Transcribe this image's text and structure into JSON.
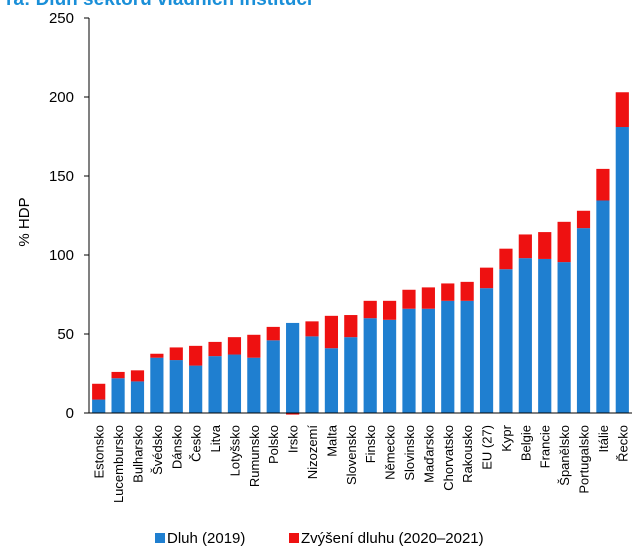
{
  "chart_data": {
    "type": "bar",
    "stacked": true,
    "title": "ra: Dluh sektoru vládních institucí",
    "ylabel": "% HDP",
    "ylim": [
      0,
      250
    ],
    "yticks": [
      0,
      50,
      100,
      150,
      200,
      250
    ],
    "grid": false,
    "legend_position": "bottom",
    "categories": [
      "Estonsko",
      "Lucembursko",
      "Bulharsko",
      "Švédsko",
      "Dánsko",
      "Česko",
      "Litva",
      "Lotyšsko",
      "Rumunsko",
      "Polsko",
      "Irsko",
      "Nizozemí",
      "Malta",
      "Slovensko",
      "Finsko",
      "Německo",
      "Slovinsko",
      "Maďarsko",
      "Chorvatsko",
      "Rakousko",
      "EU (27)",
      "Kypr",
      "Belgie",
      "Francie",
      "Španělsko",
      "Portugalsko",
      "Itálie",
      "Řecko"
    ],
    "series": [
      {
        "name": "Dluh (2019)",
        "color": "#1f7fd0",
        "values": [
          8.5,
          22,
          20,
          35,
          33.5,
          30,
          36,
          37,
          35,
          46,
          57,
          48.5,
          41,
          48,
          60,
          59,
          66,
          66,
          71,
          71,
          79,
          91,
          98,
          97.5,
          95.5,
          117,
          134.5,
          181
        ]
      },
      {
        "name": "Zvýšení dluhu (2020–2021)",
        "color": "#ee1111",
        "values": [
          10,
          4,
          7,
          2.5,
          8,
          12.5,
          9,
          11,
          14.5,
          8.5,
          -1,
          9.5,
          20.5,
          14,
          11,
          12,
          12,
          13.5,
          11,
          12,
          13,
          13,
          15,
          17,
          25.5,
          11,
          20,
          22
        ]
      }
    ]
  }
}
